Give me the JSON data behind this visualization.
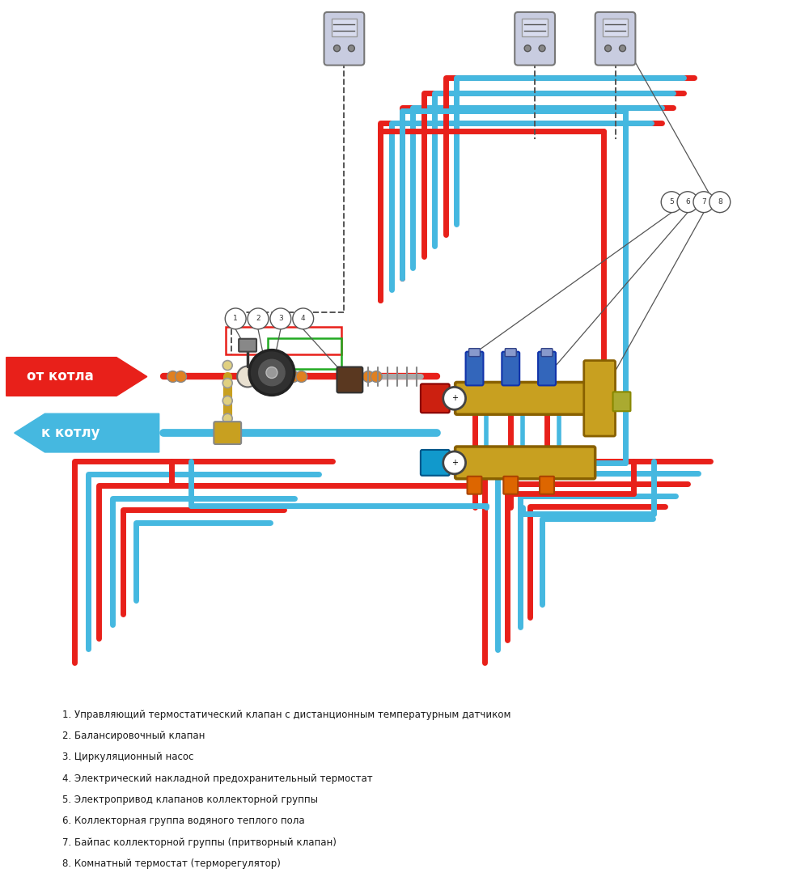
{
  "bg_color": "#ffffff",
  "red": "#e8201a",
  "blue": "#45b8e0",
  "gold": "#c8a020",
  "pipe_lw": 6,
  "arrow_from": "от котла",
  "arrow_to": "к котлу",
  "legend": [
    "1. Управляющий термостатический клапан с дистанционным температурным датчиком",
    "2. Балансировочный клапан",
    "3. Циркуляционный насос",
    "4. Электрический накладной предохранительный термостат",
    "5. Электропривод клапанов коллекторной группы",
    "6. Коллекторная группа водяного теплого пола",
    "7. Байпас коллекторной группы (притворный клапан)",
    "8. Комнатный термостат (терморегулятор)"
  ]
}
